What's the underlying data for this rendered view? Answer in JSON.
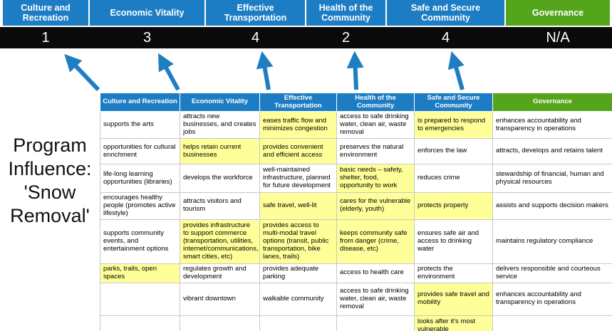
{
  "title": "Program Influence: 'Snow Removal'",
  "colors": {
    "pillar-blue": "#1d7dc4",
    "pillar-green": "#55a51c",
    "score-bg": "#0a0a0a",
    "score-text": "#ffffff",
    "highlight": "#ffff99",
    "arrow": "#1f7ec2"
  },
  "pillars": [
    {
      "label": "Culture and Recreation",
      "score": "1",
      "theme": "blue"
    },
    {
      "label": "Economic Vitality",
      "score": "3",
      "theme": "blue"
    },
    {
      "label": "Effective Transportation",
      "score": "4",
      "theme": "blue"
    },
    {
      "label": "Health of the Community",
      "score": "2",
      "theme": "blue"
    },
    {
      "label": "Safe and Secure Community",
      "score": "4",
      "theme": "blue"
    },
    {
      "label": "Governance",
      "score": "N/A",
      "theme": "green"
    }
  ],
  "matrix": {
    "headers": [
      {
        "label": "Culture and Recreation",
        "theme": "blue"
      },
      {
        "label": "Economic Vitality",
        "theme": "blue"
      },
      {
        "label": "Effective Transportation",
        "theme": "blue"
      },
      {
        "label": "Health of the Community",
        "theme": "blue"
      },
      {
        "label": "Safe and Secure Community",
        "theme": "blue"
      },
      {
        "label": "Governance",
        "theme": "green"
      }
    ],
    "rows": [
      [
        {
          "text": "supports the arts",
          "hl": false
        },
        {
          "text": "attracts new businesses, and creates jobs",
          "hl": false
        },
        {
          "text": "eases traffic flow and minimizes congestion",
          "hl": true
        },
        {
          "text": "access to safe drinking water, clean air, waste removal",
          "hl": false
        },
        {
          "text": "is prepared to respond to emergencies",
          "hl": true
        },
        {
          "text": "enhances accountability and transparency in operations",
          "hl": false
        }
      ],
      [
        {
          "text": "opportunities for cultural enrichment",
          "hl": false
        },
        {
          "text": "helps retain current businesses",
          "hl": true
        },
        {
          "text": "provides convenient and efficient access",
          "hl": true
        },
        {
          "text": "preserves the natural environment",
          "hl": false
        },
        {
          "text": "enforces the law",
          "hl": false
        },
        {
          "text": "attracts, develops and retains talent",
          "hl": false
        }
      ],
      [
        {
          "text": "life-long learning opportunities (libraries)",
          "hl": false
        },
        {
          "text": "develops the workforce",
          "hl": false
        },
        {
          "text": "well-maintained infrastructure, planned for future development",
          "hl": false
        },
        {
          "text": "basic needs – safety, shelter, food, opportunity to work",
          "hl": true
        },
        {
          "text": "reduces crime",
          "hl": false
        },
        {
          "text": "stewardship of financial, human and physical resources",
          "hl": false
        }
      ],
      [
        {
          "text": "encourages healthy people (promotes active lifestyle)",
          "hl": false
        },
        {
          "text": "attracts visitors and tourism",
          "hl": false
        },
        {
          "text": "safe travel, well-lit",
          "hl": true
        },
        {
          "text": "cares for the vulnerable (elderly, youth)",
          "hl": true
        },
        {
          "text": "protects property",
          "hl": true
        },
        {
          "text": "assists and supports decision makers",
          "hl": false
        }
      ],
      [
        {
          "text": "supports community events, and entertainment options",
          "hl": false
        },
        {
          "text": "provides infrastructure to support commerce (transportation, utilities, internet/communications, smart cities, etc)",
          "hl": true
        },
        {
          "text": "provides access to multi-modal travel options (transit, public transportation, bike lanes, trails)",
          "hl": true
        },
        {
          "text": "keeps community safe from danger (crime, disease, etc)",
          "hl": true
        },
        {
          "text": "ensures safe air and access to drinking water",
          "hl": false
        },
        {
          "text": "maintains regulatory compliance",
          "hl": false
        }
      ],
      [
        {
          "text": "parks, trails, open spaces",
          "hl": true
        },
        {
          "text": "regulates growth and development",
          "hl": false
        },
        {
          "text": "provides adequate parking",
          "hl": false
        },
        {
          "text": "access to health care",
          "hl": false
        },
        {
          "text": "protects the environment",
          "hl": false
        },
        {
          "text": "delivers responsible and courteous service",
          "hl": false
        }
      ],
      [
        {
          "text": "",
          "hl": false
        },
        {
          "text": "vibrant downtown",
          "hl": false
        },
        {
          "text": "walkable community",
          "hl": false
        },
        {
          "text": "access to safe drinking water, clean air, waste removal",
          "hl": false
        },
        {
          "text": "provides safe travel and mobility",
          "hl": true
        },
        {
          "text": "enhances accountability and transparency in operations",
          "hl": false
        }
      ],
      [
        {
          "text": "",
          "hl": false
        },
        {
          "text": "",
          "hl": false
        },
        {
          "text": "",
          "hl": false
        },
        {
          "text": "",
          "hl": false
        },
        {
          "text": "looks after it's most vulnerable",
          "hl": true
        },
        {
          "text": "",
          "hl": false
        }
      ]
    ]
  }
}
